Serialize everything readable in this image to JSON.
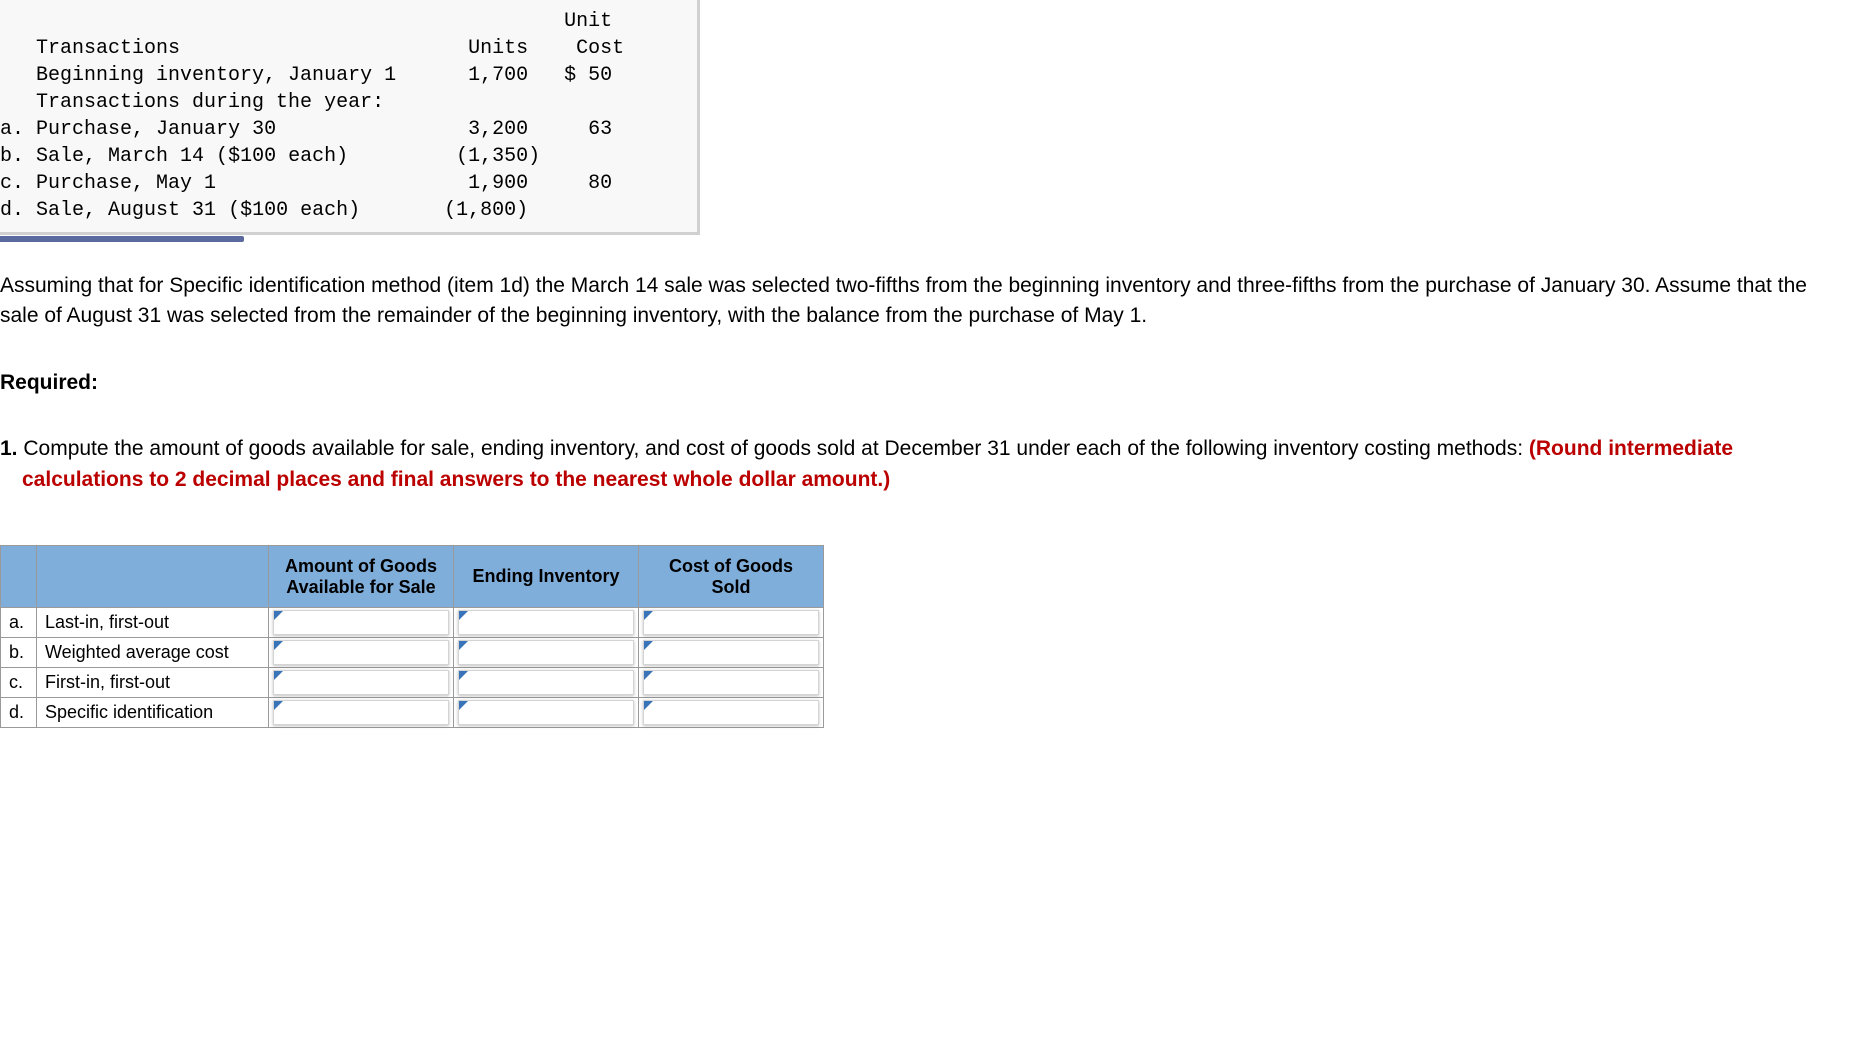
{
  "transactions_table": {
    "background_color": "#f8f8f8",
    "border_color": "#d0d0d0",
    "scrollbar_color": "#5b6a9e",
    "font_family": "Courier New",
    "headers": {
      "c1": "Transactions",
      "c2": "Units",
      "c3": "Unit",
      "c3b": "Cost"
    },
    "rows": [
      {
        "letter": "",
        "desc": "Beginning inventory, January 1",
        "units": "1,700",
        "cost": "$ 50"
      },
      {
        "letter": "",
        "desc": "Transactions during the year:",
        "units": "",
        "cost": ""
      },
      {
        "letter": "a.",
        "desc": "Purchase, January 30",
        "units": "3,200",
        "cost": "63"
      },
      {
        "letter": "b.",
        "desc": "Sale, March 14 ($100 each)",
        "units": "(1,350)",
        "cost": ""
      },
      {
        "letter": "c.",
        "desc": "Purchase, May 1",
        "units": "1,900",
        "cost": "80"
      },
      {
        "letter": "d.",
        "desc": "Sale, August 31 ($100 each)",
        "units": "(1,800)",
        "cost": ""
      }
    ]
  },
  "paragraph": "Assuming that for Specific identification method (item 1d) the March 14 sale was selected two-fifths from the beginning inventory and three-fifths from the purchase of January 30. Assume that the sale of August 31 was selected from the remainder of the beginning inventory, with the balance from the purchase of May 1.",
  "required_label": "Required:",
  "question": {
    "number": "1.",
    "text_part1": "Compute the amount of goods available for sale, ending inventory, and cost of goods sold at December 31 under each of the following inventory costing methods: ",
    "text_red": "(Round intermediate calculations to 2 decimal places and final answers to the nearest whole dollar amount.)"
  },
  "answer_table": {
    "header_bg": "#7faedb",
    "border_color": "#9a9a9a",
    "marker_color": "#3a74b8",
    "columns": [
      "Amount of Goods Available for Sale",
      "Ending Inventory",
      "Cost of Goods Sold"
    ],
    "rows": [
      {
        "letter": "a.",
        "method": "Last-in, first-out"
      },
      {
        "letter": "b.",
        "method": "Weighted average cost"
      },
      {
        "letter": "c.",
        "method": "First-in, first-out"
      },
      {
        "letter": "d.",
        "method": "Specific identification"
      }
    ]
  }
}
